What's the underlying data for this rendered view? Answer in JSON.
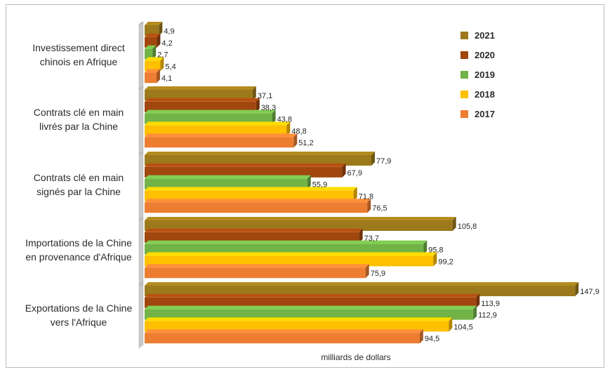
{
  "chart_data": {
    "type": "bar",
    "orientation": "horizontal",
    "categories": [
      "Investissement direct chinois en Afrique",
      "Contrats clé en main livrés par la Chine",
      "Contrats clé en main signés par la Chine",
      "Importations de la Chine en provenance d'Afrique",
      "Exportations de la Chine vers l'Afrique"
    ],
    "category_lines": [
      [
        "Investissement direct",
        "chinois en Afrique"
      ],
      [
        "Contrats clé en main",
        "livrés par la Chine"
      ],
      [
        "Contrats clé en main",
        "signés par la Chine"
      ],
      [
        "Importations de la Chine",
        "en provenance d'Afrique"
      ],
      [
        "Exportations de la Chine",
        "vers l'Afrique"
      ]
    ],
    "series": [
      {
        "name": "2021",
        "color": "#9c7a1c",
        "values": [
          4.9,
          37.1,
          77.9,
          105.8,
          147.9
        ],
        "labels": [
          "4,9",
          "37,1",
          "77,9",
          "105,8",
          "147,9"
        ]
      },
      {
        "name": "2020",
        "color": "#a0460e",
        "values": [
          4.2,
          38.3,
          67.9,
          73.7,
          113.9
        ],
        "labels": [
          "4,2",
          "38,3",
          "67,9",
          "73,7",
          "113,9"
        ]
      },
      {
        "name": "2019",
        "color": "#71b347",
        "values": [
          2.7,
          43.8,
          55.9,
          95.8,
          112.9
        ],
        "labels": [
          "2,7",
          "43,8",
          "55,9",
          "95,8",
          "112,9"
        ]
      },
      {
        "name": "2018",
        "color": "#ffc000",
        "values": [
          5.4,
          48.8,
          71.8,
          99.2,
          104.5
        ],
        "labels": [
          "5,4",
          "48,8",
          "71,8",
          "99,2",
          "104,5"
        ]
      },
      {
        "name": "2017",
        "color": "#ed7d31",
        "values": [
          4.1,
          51.2,
          76.5,
          75.9,
          94.5
        ],
        "labels": [
          "4,1",
          "51,2",
          "76,5",
          "75,9",
          "94,5"
        ]
      }
    ],
    "xlabel": "milliards de dollars",
    "xlim": [
      0,
      150
    ],
    "grid": false,
    "legend_position": "right",
    "style": "3d"
  }
}
